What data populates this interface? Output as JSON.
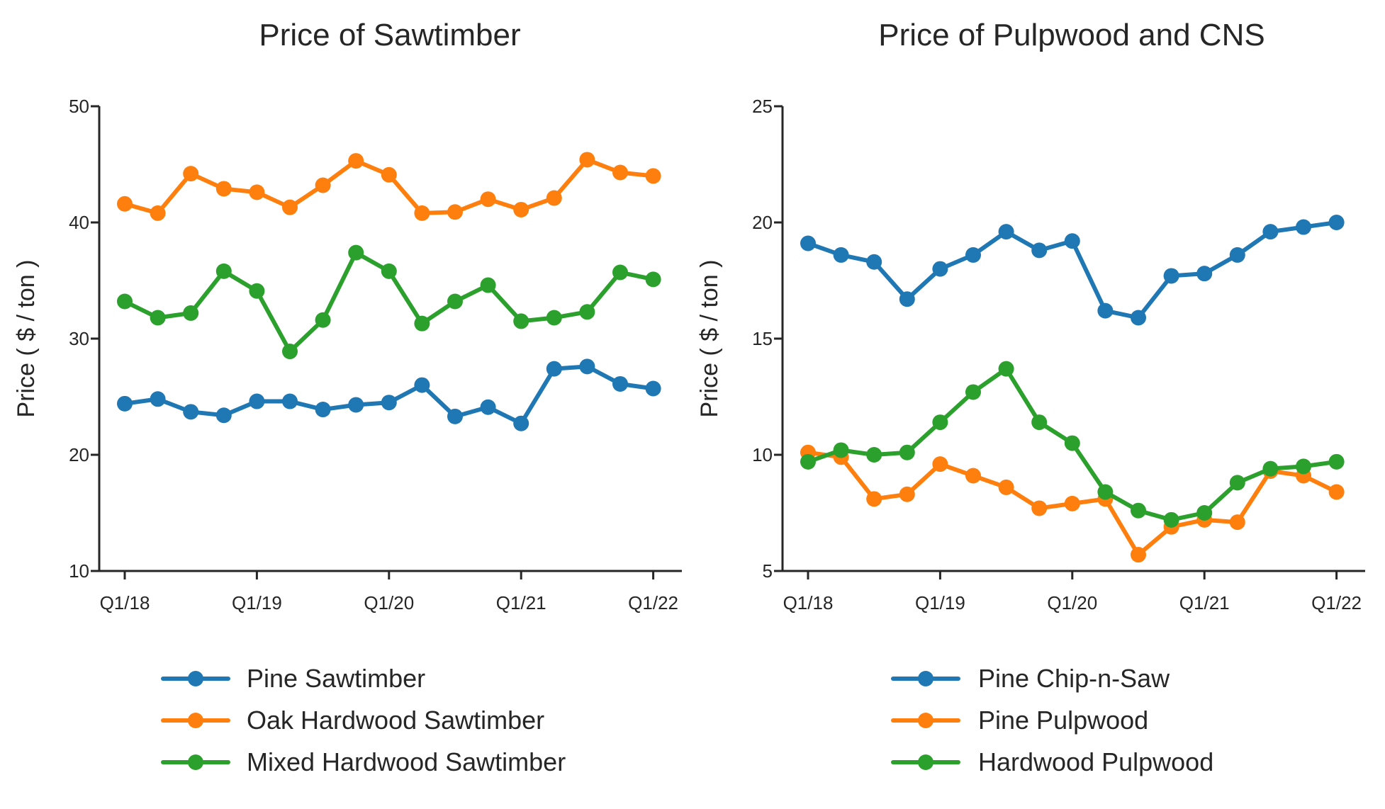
{
  "colors": {
    "blue": "#1f77b4",
    "orange": "#ff7f0e",
    "green": "#2ca02c",
    "axis": "#262626"
  },
  "chart_data": [
    {
      "type": "line",
      "title": "Price of Sawtimber",
      "xlabel": "",
      "ylabel": "Price ( $ / ton )",
      "ylim": [
        10,
        50
      ],
      "yticks": [
        "10",
        "20",
        "30",
        "40",
        "50"
      ],
      "x": [
        "Q1/18",
        "Q2/18",
        "Q3/18",
        "Q4/18",
        "Q1/19",
        "Q2/19",
        "Q3/19",
        "Q4/19",
        "Q1/20",
        "Q2/20",
        "Q3/20",
        "Q4/20",
        "Q1/21",
        "Q2/21",
        "Q3/21",
        "Q4/21",
        "Q1/22"
      ],
      "xticks": [
        "Q1/18",
        "Q1/19",
        "Q1/20",
        "Q1/21",
        "Q1/22"
      ],
      "legend_position": "below",
      "series": [
        {
          "name": "Pine Sawtimber",
          "color": "#1f77b4",
          "values": [
            24.4,
            24.8,
            23.7,
            23.4,
            24.6,
            24.6,
            23.9,
            24.3,
            24.5,
            26.0,
            23.3,
            24.1,
            22.7,
            27.4,
            27.6,
            26.1,
            25.7
          ]
        },
        {
          "name": "Oak Hardwood Sawtimber",
          "color": "#ff7f0e",
          "values": [
            41.6,
            40.8,
            44.2,
            42.9,
            42.6,
            41.3,
            43.2,
            45.3,
            44.1,
            40.8,
            40.9,
            42.0,
            41.1,
            42.1,
            45.4,
            44.3,
            44.0
          ]
        },
        {
          "name": "Mixed Hardwood Sawtimber",
          "color": "#2ca02c",
          "values": [
            33.2,
            31.8,
            32.2,
            35.8,
            34.1,
            28.9,
            31.6,
            37.4,
            35.8,
            31.3,
            33.2,
            34.6,
            31.5,
            31.8,
            32.3,
            35.7,
            35.1
          ]
        }
      ]
    },
    {
      "type": "line",
      "title": "Price of Pulpwood and CNS",
      "xlabel": "",
      "ylabel": "Price ( $ / ton )",
      "ylim": [
        5,
        25
      ],
      "yticks": [
        "5",
        "10",
        "15",
        "20",
        "25"
      ],
      "x": [
        "Q1/18",
        "Q2/18",
        "Q3/18",
        "Q4/18",
        "Q1/19",
        "Q2/19",
        "Q3/19",
        "Q4/19",
        "Q1/20",
        "Q2/20",
        "Q3/20",
        "Q4/20",
        "Q1/21",
        "Q2/21",
        "Q3/21",
        "Q4/21",
        "Q1/22"
      ],
      "xticks": [
        "Q1/18",
        "Q1/19",
        "Q1/20",
        "Q1/21",
        "Q1/22"
      ],
      "legend_position": "below",
      "series": [
        {
          "name": "Pine Chip-n-Saw",
          "color": "#1f77b4",
          "values": [
            19.1,
            18.6,
            18.3,
            16.7,
            18.0,
            18.6,
            19.6,
            18.8,
            19.2,
            16.2,
            15.9,
            17.7,
            17.8,
            18.6,
            19.6,
            19.8,
            20.0
          ]
        },
        {
          "name": "Pine Pulpwood",
          "color": "#ff7f0e",
          "values": [
            10.1,
            9.9,
            8.1,
            8.3,
            9.6,
            9.1,
            8.6,
            7.7,
            7.9,
            8.1,
            5.7,
            6.9,
            7.2,
            7.1,
            9.3,
            9.1,
            8.4
          ]
        },
        {
          "name": "Hardwood Pulpwood",
          "color": "#2ca02c",
          "values": [
            9.7,
            10.2,
            10.0,
            10.1,
            11.4,
            12.7,
            13.7,
            11.4,
            10.5,
            8.4,
            7.6,
            7.2,
            7.5,
            8.8,
            9.4,
            9.5,
            9.7
          ]
        }
      ]
    }
  ]
}
